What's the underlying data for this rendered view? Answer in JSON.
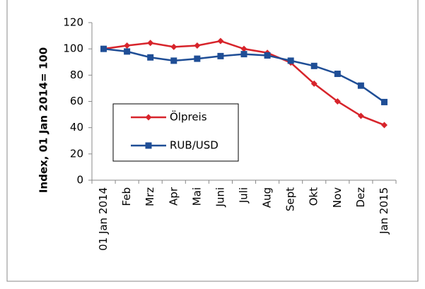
{
  "chart_data": {
    "type": "line",
    "ylabel": "Index, 01 Jan 2014= 100",
    "categories": [
      "01 Jan 2014",
      "Feb",
      "Mrz",
      "Apr",
      "Mai",
      "Juni",
      "Juli",
      "Aug",
      "Sept",
      "Okt",
      "Nov",
      "Dez",
      "Jan 2015"
    ],
    "series": [
      {
        "name": "Ölpreis",
        "color": "#d7242b",
        "values": [
          100,
          102.5,
          104.5,
          101.5,
          102.5,
          106,
          100,
          97,
          89.5,
          73.5,
          60,
          49,
          42
        ]
      },
      {
        "name": "RUB/USD",
        "color": "#1f4e96",
        "values": [
          100,
          98,
          93.5,
          91,
          92.5,
          94.5,
          96,
          95,
          91,
          87,
          81,
          72,
          59.5
        ]
      }
    ],
    "ylim": [
      0,
      120
    ],
    "yticks": [
      0,
      20,
      40,
      60,
      80,
      100,
      120
    ],
    "grid": false,
    "legend": "center left"
  }
}
